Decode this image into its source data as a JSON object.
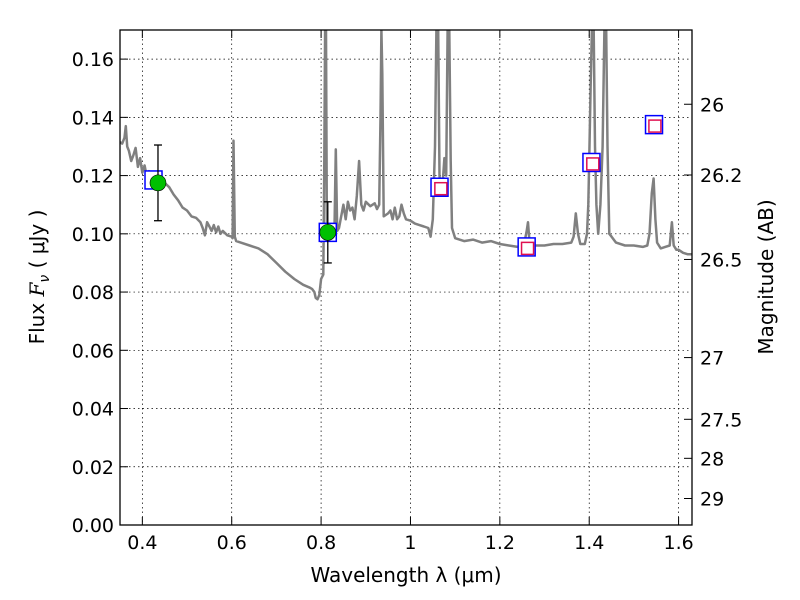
{
  "chart_data": {
    "type": "scatter",
    "title": "",
    "xlabel": "Wavelength  λ (μm)",
    "ylabel": {
      "prefix": "Flux  ",
      "symbol_main": "F",
      "symbol_sub": "ν",
      "suffix": "  ( μJy )"
    },
    "y2label": "Magnitude (AB)",
    "xlim": [
      0.35,
      1.63
    ],
    "ylim": [
      0.0,
      0.17
    ],
    "grid": true,
    "x_ticks": [
      0.4,
      0.6,
      0.8,
      1.0,
      1.2,
      1.4,
      1.6
    ],
    "x_tick_labels": [
      "0.4",
      "0.6",
      "0.8",
      "1",
      "1.2",
      "1.4",
      "1.6"
    ],
    "y_ticks": [
      0.0,
      0.02,
      0.04,
      0.06,
      0.08,
      0.1,
      0.12,
      0.14,
      0.16
    ],
    "y_tick_labels": [
      "0.00",
      "0.02",
      "0.04",
      "0.06",
      "0.08",
      "0.10",
      "0.12",
      "0.14",
      "0.16"
    ],
    "y2_ticks": [
      {
        "flux": 0.1445,
        "label": "26"
      },
      {
        "flux": 0.1202,
        "label": "26.2"
      },
      {
        "flux": 0.0912,
        "label": "26.5"
      },
      {
        "flux": 0.0575,
        "label": "27"
      },
      {
        "flux": 0.0363,
        "label": "27.5"
      },
      {
        "flux": 0.0229,
        "label": "28"
      },
      {
        "flux": 0.0091,
        "label": "29"
      }
    ],
    "series": [
      {
        "kind": "line",
        "color": "#808080",
        "points": [
          [
            0.35,
            0.1315
          ],
          [
            0.355,
            0.131
          ],
          [
            0.36,
            0.133
          ],
          [
            0.363,
            0.137
          ],
          [
            0.366,
            0.13
          ],
          [
            0.37,
            0.1285
          ],
          [
            0.375,
            0.125
          ],
          [
            0.38,
            0.127
          ],
          [
            0.385,
            0.1295
          ],
          [
            0.39,
            0.123
          ],
          [
            0.395,
            0.126
          ],
          [
            0.4,
            0.121
          ],
          [
            0.405,
            0.1235
          ],
          [
            0.41,
            0.1195
          ],
          [
            0.415,
            0.1215
          ],
          [
            0.42,
            0.119
          ],
          [
            0.425,
            0.12
          ],
          [
            0.43,
            0.1185
          ],
          [
            0.44,
            0.117
          ],
          [
            0.445,
            0.119
          ],
          [
            0.45,
            0.1175
          ],
          [
            0.46,
            0.116
          ],
          [
            0.47,
            0.1135
          ],
          [
            0.48,
            0.1115
          ],
          [
            0.49,
            0.109
          ],
          [
            0.5,
            0.108
          ],
          [
            0.51,
            0.106
          ],
          [
            0.52,
            0.1055
          ],
          [
            0.53,
            0.104
          ],
          [
            0.535,
            0.102
          ],
          [
            0.54,
            0.0995
          ],
          [
            0.545,
            0.104
          ],
          [
            0.55,
            0.1025
          ],
          [
            0.555,
            0.101
          ],
          [
            0.56,
            0.103
          ],
          [
            0.565,
            0.1005
          ],
          [
            0.57,
            0.1025
          ],
          [
            0.575,
            0.1
          ],
          [
            0.58,
            0.101
          ],
          [
            0.59,
            0.0995
          ],
          [
            0.6,
            0.099
          ],
          [
            0.602,
            0.0985
          ],
          [
            0.604,
            0.132
          ],
          [
            0.607,
            0.099
          ],
          [
            0.61,
            0.0975
          ],
          [
            0.62,
            0.097
          ],
          [
            0.64,
            0.096
          ],
          [
            0.66,
            0.095
          ],
          [
            0.68,
            0.093
          ],
          [
            0.7,
            0.09
          ],
          [
            0.72,
            0.087
          ],
          [
            0.74,
            0.0845
          ],
          [
            0.76,
            0.0825
          ],
          [
            0.775,
            0.0815
          ],
          [
            0.78,
            0.081
          ],
          [
            0.785,
            0.08
          ],
          [
            0.788,
            0.078
          ],
          [
            0.792,
            0.0775
          ],
          [
            0.796,
            0.079
          ],
          [
            0.8,
            0.0845
          ],
          [
            0.805,
            0.086
          ],
          [
            0.807,
            0.12
          ],
          [
            0.809,
            0.17
          ],
          [
            0.811,
            0.17
          ],
          [
            0.813,
            0.1
          ],
          [
            0.816,
            0.099
          ],
          [
            0.82,
            0.099
          ],
          [
            0.825,
            0.1
          ],
          [
            0.83,
            0.102
          ],
          [
            0.833,
            0.129
          ],
          [
            0.836,
            0.101
          ],
          [
            0.84,
            0.102
          ],
          [
            0.85,
            0.11
          ],
          [
            0.855,
            0.105
          ],
          [
            0.86,
            0.111
          ],
          [
            0.865,
            0.108
          ],
          [
            0.87,
            0.109
          ],
          [
            0.875,
            0.105
          ],
          [
            0.88,
            0.113
          ],
          [
            0.885,
            0.125
          ],
          [
            0.89,
            0.11
          ],
          [
            0.895,
            0.108
          ],
          [
            0.9,
            0.111
          ],
          [
            0.91,
            0.1095
          ],
          [
            0.92,
            0.1105
          ],
          [
            0.925,
            0.1085
          ],
          [
            0.93,
            0.11
          ],
          [
            0.933,
            0.14
          ],
          [
            0.935,
            0.17
          ],
          [
            0.937,
            0.155
          ],
          [
            0.94,
            0.106
          ],
          [
            0.945,
            0.1065
          ],
          [
            0.95,
            0.107
          ],
          [
            0.955,
            0.108
          ],
          [
            0.96,
            0.105
          ],
          [
            0.965,
            0.109
          ],
          [
            0.97,
            0.105
          ],
          [
            0.975,
            0.106
          ],
          [
            0.98,
            0.11
          ],
          [
            0.985,
            0.107
          ],
          [
            0.99,
            0.105
          ],
          [
            1.0,
            0.1045
          ],
          [
            1.01,
            0.1035
          ],
          [
            1.02,
            0.103
          ],
          [
            1.03,
            0.1025
          ],
          [
            1.04,
            0.102
          ],
          [
            1.045,
            0.099
          ],
          [
            1.05,
            0.105
          ],
          [
            1.055,
            0.13
          ],
          [
            1.058,
            0.17
          ],
          [
            1.062,
            0.17
          ],
          [
            1.065,
            0.12
          ],
          [
            1.068,
            0.115
          ],
          [
            1.072,
            0.117
          ],
          [
            1.076,
            0.126
          ],
          [
            1.08,
            0.12
          ],
          [
            1.083,
            0.17
          ],
          [
            1.087,
            0.17
          ],
          [
            1.09,
            0.125
          ],
          [
            1.093,
            0.102
          ],
          [
            1.1,
            0.0985
          ],
          [
            1.12,
            0.0975
          ],
          [
            1.14,
            0.098
          ],
          [
            1.16,
            0.097
          ],
          [
            1.18,
            0.0975
          ],
          [
            1.2,
            0.0965
          ],
          [
            1.22,
            0.096
          ],
          [
            1.24,
            0.0955
          ],
          [
            1.25,
            0.095
          ],
          [
            1.255,
            0.097
          ],
          [
            1.26,
            0.101
          ],
          [
            1.263,
            0.104
          ],
          [
            1.266,
            0.098
          ],
          [
            1.27,
            0.0955
          ],
          [
            1.28,
            0.096
          ],
          [
            1.3,
            0.096
          ],
          [
            1.32,
            0.0965
          ],
          [
            1.34,
            0.0965
          ],
          [
            1.36,
            0.097
          ],
          [
            1.365,
            0.099
          ],
          [
            1.37,
            0.107
          ],
          [
            1.375,
            0.1
          ],
          [
            1.38,
            0.0965
          ],
          [
            1.39,
            0.0965
          ],
          [
            1.395,
            0.1
          ],
          [
            1.398,
            0.11
          ],
          [
            1.4,
            0.125
          ],
          [
            1.403,
            0.15
          ],
          [
            1.406,
            0.17
          ],
          [
            1.41,
            0.17
          ],
          [
            1.413,
            0.13
          ],
          [
            1.416,
            0.11
          ],
          [
            1.42,
            0.1
          ],
          [
            1.425,
            0.11
          ],
          [
            1.43,
            0.13
          ],
          [
            1.434,
            0.17
          ],
          [
            1.438,
            0.17
          ],
          [
            1.441,
            0.13
          ],
          [
            1.445,
            0.1
          ],
          [
            1.45,
            0.099
          ],
          [
            1.46,
            0.097
          ],
          [
            1.48,
            0.096
          ],
          [
            1.5,
            0.096
          ],
          [
            1.52,
            0.0955
          ],
          [
            1.53,
            0.096
          ],
          [
            1.535,
            0.1
          ],
          [
            1.54,
            0.114
          ],
          [
            1.544,
            0.119
          ],
          [
            1.548,
            0.105
          ],
          [
            1.552,
            0.097
          ],
          [
            1.56,
            0.095
          ],
          [
            1.57,
            0.0955
          ],
          [
            1.58,
            0.096
          ],
          [
            1.585,
            0.104
          ],
          [
            1.589,
            0.096
          ],
          [
            1.595,
            0.0945
          ],
          [
            1.6,
            0.0945
          ],
          [
            1.61,
            0.0935
          ],
          [
            1.62,
            0.093
          ],
          [
            1.63,
            0.093
          ]
        ]
      },
      {
        "kind": "model-points",
        "edge_color": "#0000ff",
        "points": [
          [
            0.425,
            0.1185
          ],
          [
            0.815,
            0.1005
          ],
          [
            1.065,
            0.116
          ],
          [
            1.26,
            0.0955
          ],
          [
            1.405,
            0.1245
          ],
          [
            1.545,
            0.1375
          ]
        ]
      },
      {
        "kind": "upper-limits",
        "edge_color": "#e01050",
        "points": [
          [
            1.068,
            0.1155
          ],
          [
            1.262,
            0.095
          ],
          [
            1.408,
            0.124
          ],
          [
            1.547,
            0.137
          ]
        ]
      },
      {
        "kind": "detections",
        "color": "#00c000",
        "points": [
          {
            "x": 0.435,
            "y": 0.1175,
            "yerr": 0.013
          },
          {
            "x": 0.815,
            "y": 0.1005,
            "yerr": 0.0105
          }
        ]
      }
    ]
  }
}
